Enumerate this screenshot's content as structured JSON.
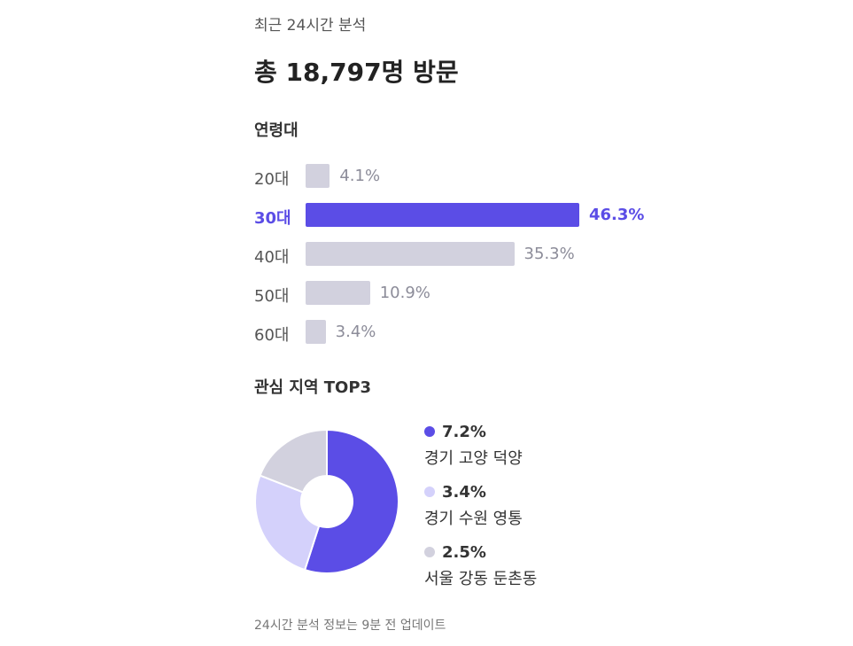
{
  "header": {
    "subtitle": "최근 24시간 분석",
    "headline": "총 18,797명 방문"
  },
  "age_section": {
    "title": "연령대"
  },
  "region_section": {
    "title": "관심 지역 TOP3"
  },
  "footer": {
    "note": "24시간 분석 정보는 9분 전 업데이트"
  },
  "colors": {
    "accent": "#5b4de6",
    "bar_default": "#d2d1de",
    "pie_second": "#d4d1fb",
    "pie_rest": "#d2d1de"
  },
  "chart_data": [
    {
      "type": "bar",
      "orientation": "horizontal",
      "title": "연령대",
      "categories": [
        "20대",
        "30대",
        "40대",
        "50대",
        "60대"
      ],
      "values": [
        4.1,
        46.3,
        35.3,
        10.9,
        3.4
      ],
      "value_labels": [
        "4.1%",
        "46.3%",
        "35.3%",
        "10.9%",
        "3.4%"
      ],
      "highlighted_index": 1,
      "xlim": [
        0,
        55
      ],
      "grid": false,
      "legend": "none"
    },
    {
      "type": "pie",
      "variant": "donut",
      "title": "관심 지역 TOP3",
      "slices": [
        {
          "label": "경기 고양 덕양",
          "value": 7.2,
          "value_label": "7.2%",
          "color": "#5b4de6"
        },
        {
          "label": "경기 수원 영통",
          "value": 3.4,
          "value_label": "3.4%",
          "color": "#d4d1fb"
        },
        {
          "label": "서울 강동 둔촌동",
          "value": 2.5,
          "value_label": "2.5%",
          "color": "#d2d1de"
        }
      ],
      "legend": "right"
    }
  ]
}
